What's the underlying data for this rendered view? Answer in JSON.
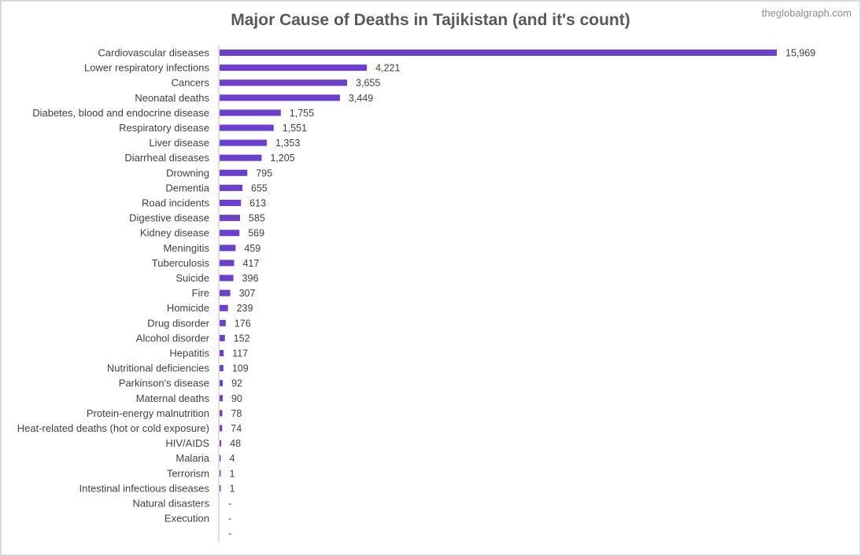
{
  "watermark": "theglobalgraph.com",
  "colors": {
    "bar": "#6a3fd1",
    "axis": "#bfbfbf",
    "text": "#404040",
    "title": "#595959"
  },
  "chart_data": {
    "type": "bar",
    "orientation": "horizontal",
    "title": "Major Cause of Deaths in Tajikistan (and it's count)",
    "xlabel": "",
    "ylabel": "",
    "grid": false,
    "legend": "none",
    "xlim": [
      0,
      15969
    ],
    "categories": [
      "Cardiovascular diseases",
      "Lower respiratory infections",
      "Cancers",
      "Neonatal deaths",
      "Diabetes, blood and endocrine disease",
      "Respiratory disease",
      "Liver disease",
      "Diarrheal diseases",
      "Drowning",
      "Dementia",
      "Road incidents",
      "Digestive disease",
      "Kidney disease",
      "Meningitis",
      "Tuberculosis",
      "Suicide",
      "Fire",
      "Homicide",
      "Drug disorder",
      "Alcohol disorder",
      "Hepatitis",
      "Nutritional deficiencies",
      "Parkinson's disease",
      "Maternal deaths",
      "Protein-energy malnutrition",
      "Heat-related deaths (hot or cold exposure)",
      "HIV/AIDS",
      "Malaria",
      "Terrorism",
      "Intestinal infectious diseases",
      "Natural disasters",
      "Execution",
      ""
    ],
    "values": [
      15969,
      4221,
      3655,
      3449,
      1755,
      1551,
      1353,
      1205,
      795,
      655,
      613,
      585,
      569,
      459,
      417,
      396,
      307,
      239,
      176,
      152,
      117,
      109,
      92,
      90,
      78,
      74,
      48,
      4,
      1,
      1,
      0,
      0,
      0
    ],
    "value_labels": [
      "15,969",
      "4,221",
      "3,655",
      "3,449",
      "1,755",
      "1,551",
      "1,353",
      "1,205",
      "795",
      "655",
      "613",
      "585",
      "569",
      "459",
      "417",
      "396",
      "307",
      "239",
      "176",
      "152",
      "117",
      "109",
      "92",
      "90",
      "78",
      "74",
      "48",
      "4",
      "1",
      "1",
      "-",
      "-",
      "-"
    ]
  }
}
